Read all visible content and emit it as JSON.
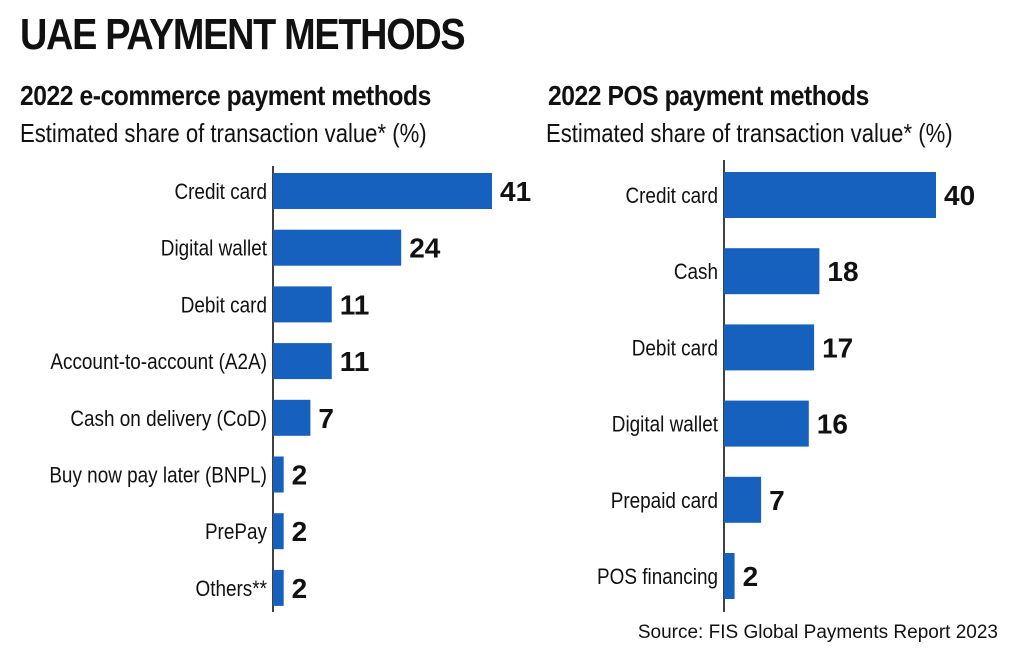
{
  "header": {
    "title": "UAE PAYMENT METHODS"
  },
  "source": "Source: FIS Global Payments Report 2023",
  "colors": {
    "bar": "#1660be",
    "text": "#111111"
  },
  "chart_data": [
    {
      "type": "bar",
      "orientation": "horizontal",
      "title": "2022 e-commerce payment methods",
      "subtitle": "Estimated share of transaction value* (%)",
      "categories": [
        "Credit card",
        "Digital wallet",
        "Debit card",
        "Account-to-account (A2A)",
        "Cash on delivery (CoD)",
        "Buy now pay later (BNPL)",
        "PrePay",
        "Others**"
      ],
      "values": [
        41,
        24,
        11,
        11,
        7,
        2,
        2,
        2
      ],
      "xlim": [
        0,
        41
      ]
    },
    {
      "type": "bar",
      "orientation": "horizontal",
      "title": "2022 POS payment methods",
      "subtitle": "Estimated share of transaction value* (%)",
      "categories": [
        "Credit card",
        "Cash",
        "Debit card",
        "Digital wallet",
        "Prepaid card",
        "POS financing"
      ],
      "values": [
        40,
        18,
        17,
        16,
        7,
        2
      ],
      "xlim": [
        0,
        40
      ]
    }
  ]
}
